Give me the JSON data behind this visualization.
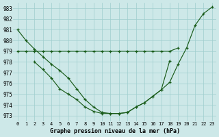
{
  "title": "Graphe pression niveau de la mer (hPa)",
  "bg_color": "#cde8e8",
  "grid_color": "#9ecece",
  "line_color": "#1a5c1a",
  "ylim": [
    972.5,
    983.5
  ],
  "yticks": [
    973,
    974,
    975,
    976,
    977,
    978,
    979,
    980,
    981,
    982,
    983
  ],
  "x_labels": [
    "0",
    "1",
    "2",
    "3",
    "4",
    "5",
    "6",
    "7",
    "8",
    "9",
    "10",
    "11",
    "12",
    "13",
    "14",
    "15",
    "16",
    "17",
    "18",
    "19",
    "20",
    "21",
    "22",
    "23"
  ],
  "line1_x": [
    0,
    1,
    2,
    3,
    4,
    5,
    6,
    7,
    8,
    9,
    10,
    11,
    12,
    13,
    14,
    15,
    16,
    17,
    18,
    19,
    20,
    21,
    22,
    23
  ],
  "line1_y": [
    981.0,
    980.0,
    979.2,
    978.5,
    977.8,
    977.2,
    976.5,
    975.5,
    974.5,
    973.8,
    973.3,
    973.2,
    973.2,
    973.3,
    973.8,
    974.2,
    974.8,
    975.4,
    976.1,
    977.8,
    979.3,
    981.4,
    982.5,
    983.1
  ],
  "line2_x": [
    0,
    1,
    2,
    3,
    4,
    5,
    6,
    7,
    8,
    9,
    10,
    11,
    12,
    13,
    14,
    15,
    16,
    17,
    18,
    19
  ],
  "line2_y": [
    979.0,
    979.0,
    979.0,
    979.0,
    979.0,
    979.0,
    979.0,
    979.0,
    979.0,
    979.0,
    979.0,
    979.0,
    979.0,
    979.0,
    979.0,
    979.0,
    979.0,
    979.0,
    979.0,
    979.3
  ],
  "line3_x": [
    2,
    3,
    4,
    5,
    6,
    7,
    8,
    9,
    10,
    11,
    12,
    13,
    14,
    15,
    16,
    17,
    18
  ],
  "line3_y": [
    978.0,
    977.3,
    976.5,
    975.5,
    975.0,
    974.5,
    973.8,
    973.4,
    973.2,
    973.2,
    973.2,
    973.3,
    973.8,
    974.2,
    974.8,
    975.4,
    978.1
  ]
}
